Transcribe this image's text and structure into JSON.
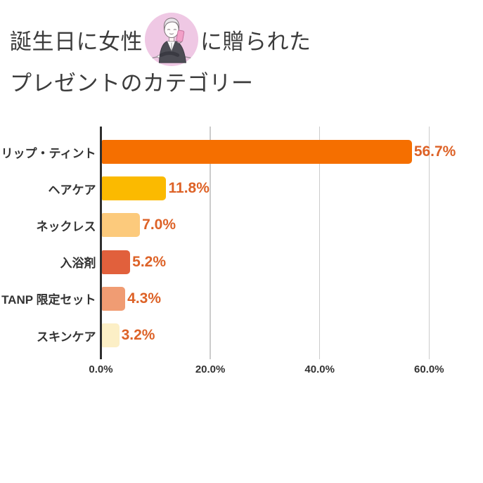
{
  "title": {
    "line1_before": "誕生日に女性",
    "line1_after": "に贈られた",
    "line2": "プレゼントのカテゴリー",
    "avatar": "woman-with-smartphone-illustration",
    "avatar_bg_color": "#efc8e4"
  },
  "chart_data": {
    "type": "bar",
    "orientation": "horizontal",
    "title": "誕生日に女性に贈られたプレゼントのカテゴリー",
    "categories": [
      "リップ・ティント",
      "ヘアケア",
      "ネックレス",
      "入浴剤",
      "TANP 限定セット",
      "スキンケア"
    ],
    "values": [
      56.7,
      11.8,
      7.0,
      5.2,
      4.3,
      3.2
    ],
    "value_labels": [
      "56.7%",
      "11.8%",
      "7.0%",
      "5.2%",
      "4.3%",
      "3.2%"
    ],
    "bar_colors": [
      "#f56f00",
      "#fbba00",
      "#fcca7c",
      "#e1603c",
      "#f09c73",
      "#fcefc6"
    ],
    "x_ticks": [
      {
        "value": 0,
        "label": "0.0%"
      },
      {
        "value": 20,
        "label": "20.0%"
      },
      {
        "value": 40,
        "label": "40.0%"
      },
      {
        "value": 60,
        "label": "60.0%"
      }
    ],
    "xlim": [
      0,
      66
    ],
    "grid": true,
    "legend": false,
    "value_label_color": "#dd6227",
    "axis_color": "#2f2f2f",
    "gridline_color": "#cccccc",
    "category_label_color": "#333333"
  }
}
